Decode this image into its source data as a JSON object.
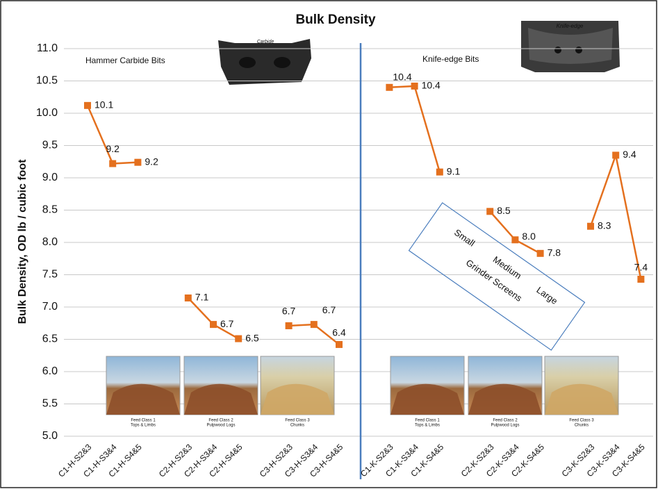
{
  "chart_data": {
    "type": "line",
    "title": "Bulk Density",
    "y_label": "Bulk Density, OD lb / cubic foot",
    "categories": [
      "C1-H-S2&3",
      "C1-H-S3&4",
      "C1-H-S4&5",
      null,
      "C2-H-S2&3",
      "C2-H-S3&4",
      "C2-H-S4&5",
      null,
      "C3-H-S2&3",
      "C3-H-S3&4",
      "C3-H-S4&5",
      null,
      "C1-K-S2&3",
      "C1-K-S3&4",
      "C1-K-S4&5",
      null,
      "C2-K-S2&3",
      "C2-K-S3&4",
      "C2-K-S4&5",
      null,
      "C3-K-S2&3",
      "C3-K-S3&4",
      "C3-K-S4&5"
    ],
    "series": [
      {
        "color": "#e4701e",
        "values": [
          10.12,
          9.22,
          9.24,
          null,
          7.14,
          6.73,
          6.51,
          null,
          6.71,
          6.73,
          6.42,
          null,
          10.4,
          10.42,
          9.09,
          null,
          8.48,
          8.04,
          7.83,
          null,
          8.25,
          9.35,
          7.43
        ],
        "value_labels": [
          "10.1",
          "9.2",
          "9.2",
          null,
          "7.1",
          "6.7",
          "6.5",
          null,
          "6.7",
          "6.7",
          "6.4",
          null,
          "10.4",
          "10.4",
          "9.1",
          null,
          "8.5",
          "8.0",
          "7.8",
          null,
          "8.3",
          "9.4",
          "7.4"
        ]
      }
    ],
    "ylim": [
      5.0,
      11.0
    ],
    "yticks": [
      {
        "value": 5.0,
        "label": "5.0"
      },
      {
        "value": 5.5,
        "label": "5.5"
      },
      {
        "value": 6.0,
        "label": "6.0"
      },
      {
        "value": 6.5,
        "label": "6.5"
      },
      {
        "value": 7.0,
        "label": "7.0"
      },
      {
        "value": 7.5,
        "label": "7.5"
      },
      {
        "value": 8.0,
        "label": "8.0"
      },
      {
        "value": 8.5,
        "label": "8.5"
      },
      {
        "value": 9.0,
        "label": "9.0"
      },
      {
        "value": 9.5,
        "label": "9.5"
      },
      {
        "value": 10.0,
        "label": "10.0"
      },
      {
        "value": 10.5,
        "label": "10.5"
      },
      {
        "value": 11.0,
        "label": "11.0"
      }
    ],
    "grid": true,
    "group_labels": [
      "Hammer Carbide Bits",
      "Knife-edge Bits"
    ],
    "tool_labels": [
      "Carbide",
      "Knife-edge"
    ],
    "screen_labels": [
      "Small",
      "Medium",
      "Large",
      "Grinder Screens"
    ],
    "photo_captions": [
      [
        "Feed Class 1",
        "Tops & Limbs"
      ],
      [
        "Feed Class 2",
        "Pulpwood Logs"
      ],
      [
        "Feed Class 3",
        "Chunks"
      ],
      [
        "Feed Class 1",
        "Tops & Limbs"
      ],
      [
        "Feed Class 2",
        "Pulpwood Logs"
      ],
      [
        "Feed Class 3",
        "Chunks"
      ]
    ]
  }
}
